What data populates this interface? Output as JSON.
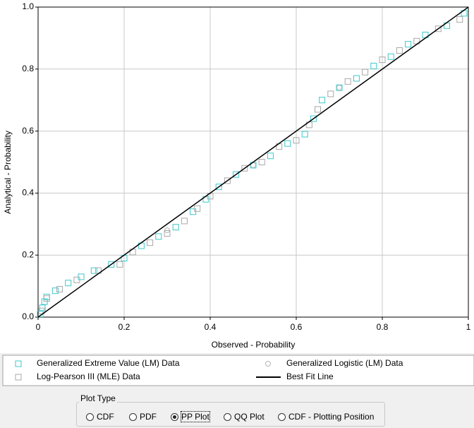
{
  "chart_data": {
    "type": "scatter",
    "xlabel": "Observed - Probability",
    "ylabel": "Analytical - Probability",
    "xlim": [
      0,
      1
    ],
    "ylim": [
      0,
      1
    ],
    "xticks": [
      0,
      0.2,
      0.4,
      0.6,
      0.8,
      1
    ],
    "yticks": [
      {
        "value": 0,
        "label": "0.0"
      },
      0.2,
      0.4,
      0.6,
      0.8,
      {
        "value": 1,
        "label": "1.0"
      }
    ],
    "grid": true,
    "series": [
      {
        "name": "Generalized Extreme Value (LM) Data",
        "color": "#3cc8cc",
        "marker": "square",
        "x": [
          0.005,
          0.01,
          0.015,
          0.02,
          0.04,
          0.07,
          0.1,
          0.13,
          0.17,
          0.2,
          0.24,
          0.28,
          0.32,
          0.36,
          0.39,
          0.42,
          0.46,
          0.5,
          0.54,
          0.58,
          0.62,
          0.64,
          0.66,
          0.7,
          0.74,
          0.78,
          0.82,
          0.86,
          0.9,
          0.95,
          0.99
        ],
        "y": [
          0.01,
          0.03,
          0.05,
          0.065,
          0.085,
          0.11,
          0.13,
          0.15,
          0.17,
          0.19,
          0.23,
          0.26,
          0.29,
          0.34,
          0.38,
          0.42,
          0.46,
          0.49,
          0.52,
          0.56,
          0.59,
          0.64,
          0.7,
          0.74,
          0.77,
          0.81,
          0.84,
          0.88,
          0.91,
          0.94,
          0.98
        ]
      },
      {
        "name": "Generalized Logistic (LM) Data",
        "color": "#b4b4b4",
        "marker": "circle",
        "x": [
          0.3,
          0.5,
          0.7
        ],
        "y": [
          0.28,
          0.49,
          0.74
        ]
      },
      {
        "name": "Log-Pearson III (MLE) Data",
        "color": "#a8a8a8",
        "marker": "square",
        "x": [
          0.008,
          0.02,
          0.05,
          0.09,
          0.14,
          0.19,
          0.22,
          0.26,
          0.3,
          0.34,
          0.37,
          0.4,
          0.44,
          0.48,
          0.52,
          0.56,
          0.6,
          0.63,
          0.65,
          0.68,
          0.72,
          0.76,
          0.8,
          0.84,
          0.88,
          0.93,
          0.98
        ],
        "y": [
          0.02,
          0.06,
          0.09,
          0.12,
          0.15,
          0.17,
          0.21,
          0.24,
          0.27,
          0.31,
          0.35,
          0.39,
          0.44,
          0.48,
          0.5,
          0.55,
          0.57,
          0.62,
          0.67,
          0.72,
          0.76,
          0.79,
          0.83,
          0.86,
          0.89,
          0.93,
          0.96
        ]
      },
      {
        "name": "Best Fit Line",
        "color": "#000000",
        "marker": "line",
        "x": [
          0,
          1
        ],
        "y": [
          0,
          1
        ]
      }
    ]
  },
  "plot_type": {
    "title": "Plot Type",
    "options": [
      "CDF",
      "PDF",
      "PP Plot",
      "QQ Plot",
      "CDF - Plotting Position"
    ],
    "selected": 2
  }
}
